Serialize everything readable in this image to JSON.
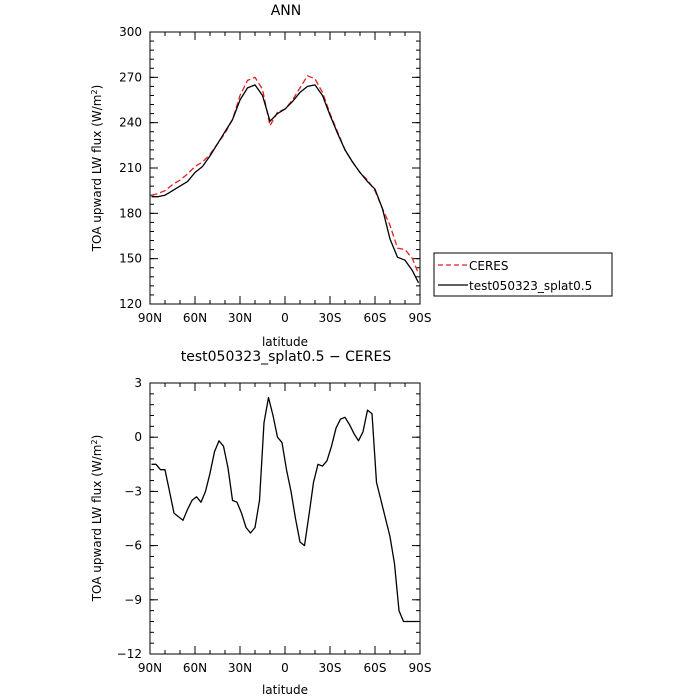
{
  "chart_data": [
    {
      "type": "line",
      "title": "ANN",
      "xlabel": "latitude",
      "ylabel": "TOA upward LW flux (W/m",
      "ylabel_sup": "2",
      "ylabel_end": ")",
      "xlim": [
        90,
        -90
      ],
      "ylim": [
        120,
        300
      ],
      "x_ticks": [
        90,
        60,
        30,
        0,
        -30,
        -60,
        -90
      ],
      "x_tick_labels": [
        "90N",
        "60N",
        "30N",
        "0",
        "30S",
        "60S",
        "90S"
      ],
      "y_ticks": [
        120,
        150,
        180,
        210,
        240,
        270,
        300
      ],
      "y_tick_labels": [
        "120",
        "150",
        "180",
        "210",
        "240",
        "270",
        "300"
      ],
      "legend_position": "outside-right",
      "series": [
        {
          "name": "CERES",
          "color": "#e0201f",
          "dash": "dashed",
          "x": [
            89,
            85,
            80,
            75,
            70,
            65,
            60,
            55,
            50,
            45,
            40,
            35,
            30,
            25,
            20,
            15,
            10,
            5,
            0,
            -5,
            -10,
            -15,
            -20,
            -25,
            -30,
            -35,
            -40,
            -45,
            -50,
            -55,
            -60,
            -65,
            -70,
            -75,
            -80,
            -85,
            -89
          ],
          "y": [
            192,
            193,
            195,
            199,
            202,
            206,
            211,
            214,
            219,
            226,
            233,
            242,
            258,
            268,
            270,
            262,
            238,
            247,
            249,
            255,
            263,
            271,
            269,
            260,
            246,
            234,
            222,
            214,
            207,
            202,
            195,
            183,
            172,
            157,
            156,
            150,
            140
          ]
        },
        {
          "name": "test050323_splat0.5",
          "color": "#000000",
          "dash": "solid",
          "x": [
            89,
            85,
            80,
            75,
            70,
            65,
            60,
            55,
            50,
            45,
            40,
            35,
            30,
            25,
            20,
            15,
            10,
            5,
            0,
            -5,
            -10,
            -15,
            -20,
            -25,
            -30,
            -35,
            -40,
            -45,
            -50,
            -55,
            -60,
            -65,
            -70,
            -75,
            -80,
            -85,
            -89
          ],
          "y": [
            191,
            191,
            192,
            195,
            198,
            201,
            207,
            211,
            218,
            226,
            234,
            242,
            255,
            263,
            265,
            258,
            241,
            246,
            249,
            254,
            260,
            264,
            265,
            258,
            245,
            233,
            222,
            214,
            207,
            201,
            196,
            183,
            163,
            151,
            149,
            142,
            134
          ]
        }
      ]
    },
    {
      "type": "line",
      "title": "test050323_splat0.5 − CERES",
      "xlabel": "latitude",
      "ylabel": "TOA upward LW flux (W/m",
      "ylabel_sup": "2",
      "ylabel_end": ")",
      "xlim": [
        90,
        -90
      ],
      "ylim": [
        -12,
        3
      ],
      "x_ticks": [
        90,
        60,
        30,
        0,
        -30,
        -60,
        -90
      ],
      "x_tick_labels": [
        "90N",
        "60N",
        "30N",
        "0",
        "30S",
        "60S",
        "90S"
      ],
      "y_ticks": [
        -12,
        -9,
        -6,
        -3,
        0,
        3
      ],
      "y_tick_labels": [
        "−12",
        "−9",
        "−6",
        "−3",
        "0",
        "3"
      ],
      "series": [
        {
          "name": "test050323_splat0.5 − CERES",
          "color": "#000000",
          "dash": "solid",
          "x": [
            89,
            86,
            83,
            80,
            77,
            74,
            71,
            68,
            65,
            62,
            59,
            56,
            53,
            50,
            47,
            44,
            41,
            38,
            35,
            32,
            29,
            26,
            23,
            20,
            17,
            14,
            11,
            8,
            5,
            2,
            -1,
            -4,
            -7,
            -10,
            -13,
            -16,
            -19,
            -22,
            -25,
            -28,
            -31,
            -34,
            -37,
            -40,
            -43,
            -46,
            -49,
            -52,
            -55,
            -58,
            -61,
            -64,
            -67,
            -70,
            -73,
            -76,
            -79,
            -82,
            -85,
            -89
          ],
          "y": [
            -1.5,
            -1.5,
            -1.8,
            -1.8,
            -3.0,
            -4.2,
            -4.4,
            -4.6,
            -4.0,
            -3.5,
            -3.3,
            -3.6,
            -3.0,
            -2.0,
            -0.8,
            -0.2,
            -0.5,
            -1.7,
            -3.5,
            -3.6,
            -4.2,
            -5.0,
            -5.3,
            -5.0,
            -3.5,
            0.8,
            2.2,
            1.2,
            0.0,
            -0.3,
            -1.8,
            -3.0,
            -4.5,
            -5.8,
            -6.0,
            -4.3,
            -2.5,
            -1.5,
            -1.6,
            -1.3,
            -0.5,
            0.5,
            1.0,
            1.1,
            0.7,
            0.2,
            -0.2,
            0.3,
            1.5,
            1.3,
            -2.5,
            -3.5,
            -4.5,
            -5.5,
            -7.0,
            -9.6,
            -10.2,
            -10.2,
            -10.2,
            -10.2
          ]
        }
      ]
    }
  ]
}
